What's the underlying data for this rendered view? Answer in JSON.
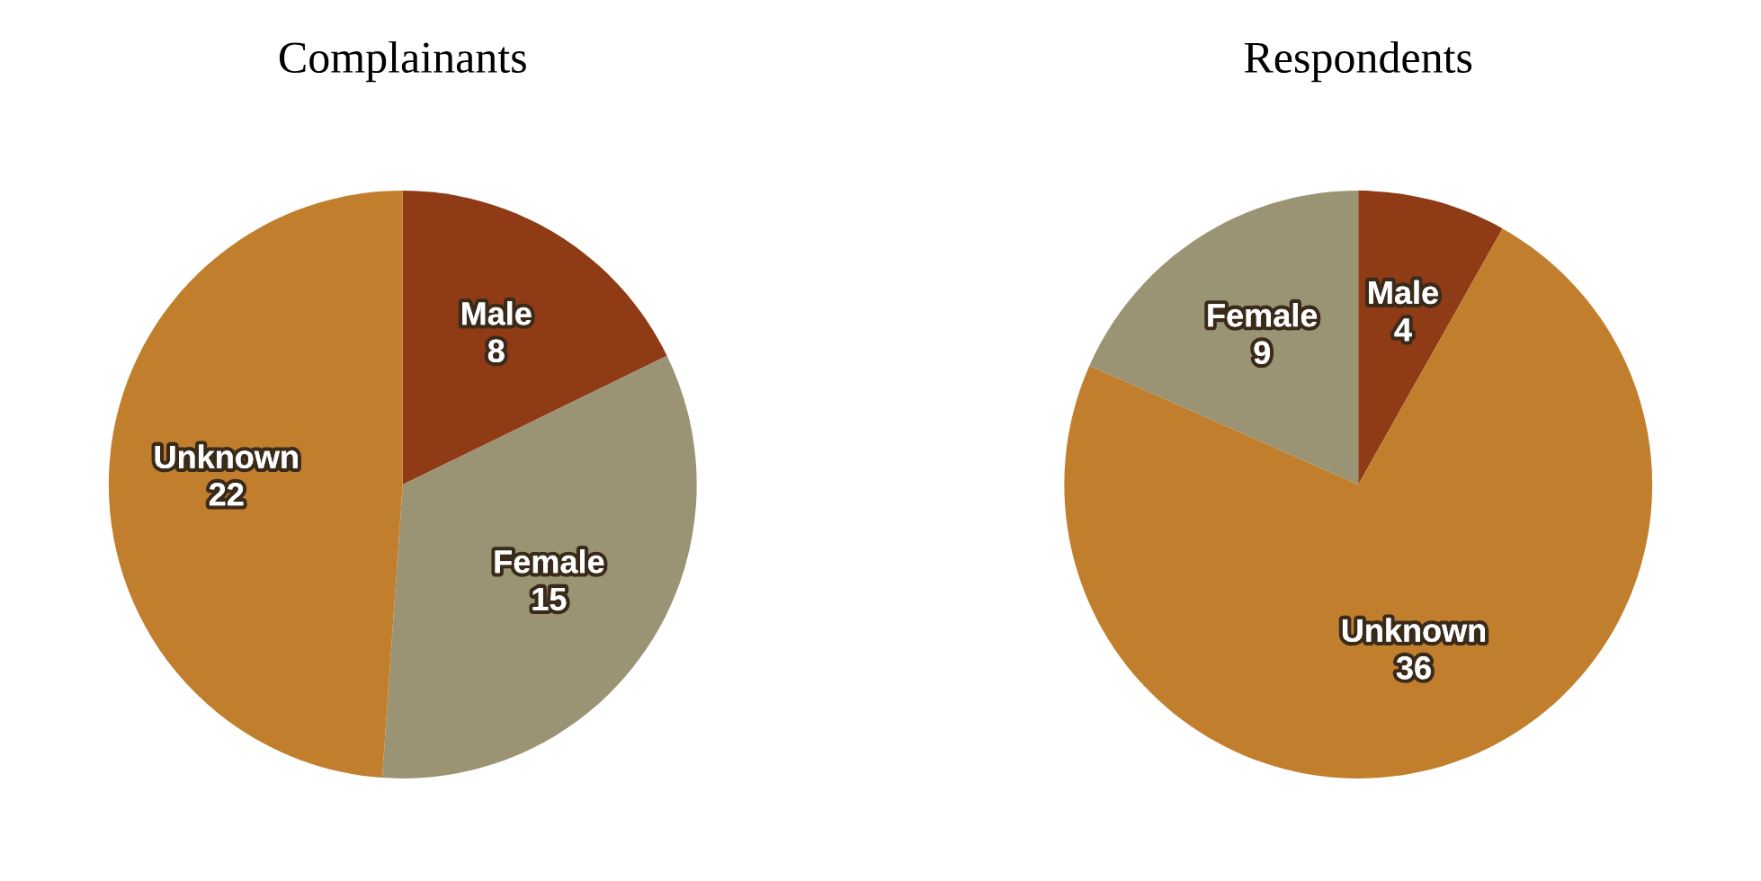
{
  "chart_data": [
    {
      "type": "pie",
      "title": "Complainants",
      "categories": [
        "Male",
        "Female",
        "Unknown"
      ],
      "values": [
        8,
        15,
        22
      ],
      "colors": [
        "#8e3b16",
        "#9b9474",
        "#c17f2e"
      ],
      "data_labels": true
    },
    {
      "type": "pie",
      "title": "Respondents",
      "categories": [
        "Male",
        "Unknown",
        "Female"
      ],
      "values": [
        4,
        36,
        9
      ],
      "colors": [
        "#8e3b16",
        "#c17f2e",
        "#9b9474"
      ],
      "data_labels": true
    }
  ]
}
